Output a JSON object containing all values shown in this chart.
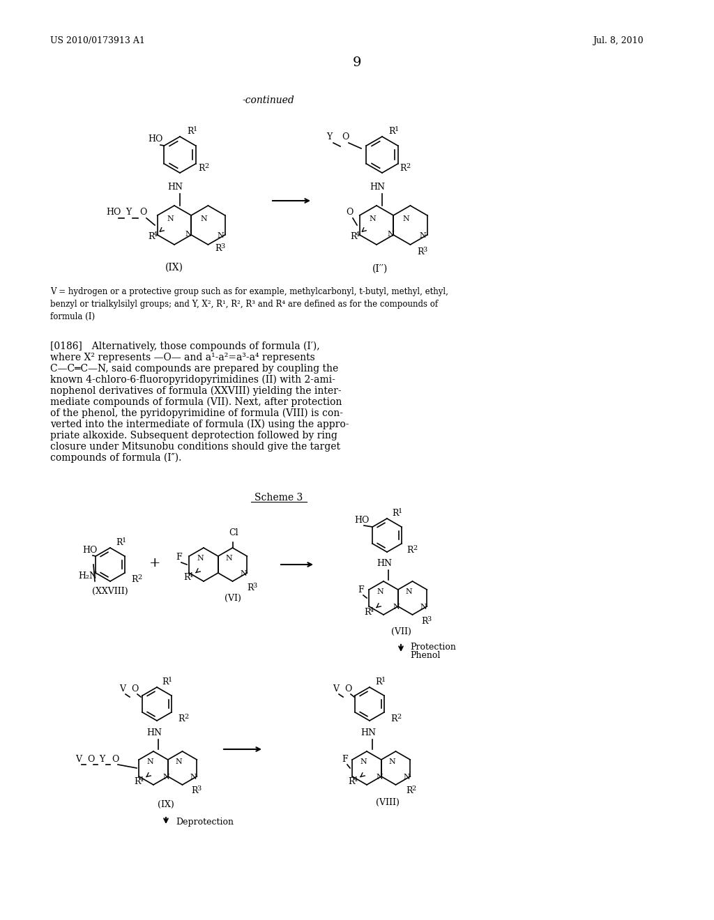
{
  "page_number": "9",
  "header_left": "US 2010/0173913 A1",
  "header_right": "Jul. 8, 2010",
  "background_color": "#ffffff",
  "text_color": "#000000",
  "continued_label": "-continued",
  "scheme3_label": "Scheme 3",
  "footnote_text": "V = hydrogen or a protective group such as for example, methylcarbonyl, t-butyl, methyl, ethyl,\nbenzyl or trialkylsilyl groups; and Y, X², R¹, R², R³ and R⁴ are defined as for the compounds of\nformula (I)",
  "paragraph_text": "[0186] Alternatively, those compounds of formula (I′),\nwhere X² represents —O— and a¹-a²=a³-a⁴ represents\nC—C═C—N, said compounds are prepared by coupling the\nknown 4-chloro-6-fluoropyridopyrimidines (II) with 2-ami-\nnophenol derivatives of formula (XXVIII) yielding the inter-\nmediate compounds of formula (VII). Next, after protection\nof the phenol, the pyridopyrimidine of formula (VIII) is con-\nverted into the intermediate of formula (IX) using the appro-\npriate alkoxide. Subsequent deprotection followed by ring\nclosure under Mitsunobu conditions should give the target\ncompounds of formula (I″).",
  "deprotection_label": "Deprotection",
  "protection_label": "Protection\nPhenol",
  "fig_width": 10.24,
  "fig_height": 13.2,
  "dpi": 100
}
